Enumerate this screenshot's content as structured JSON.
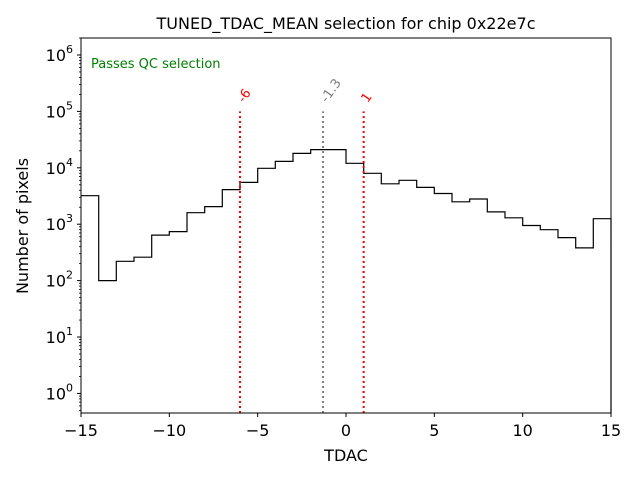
{
  "chart_data": {
    "type": "step-histogram",
    "title": "TUNED_TDAC_MEAN selection for chip 0x22e7c",
    "xlabel": "TDAC",
    "ylabel": "Number of pixels",
    "xlim": [
      -15,
      15
    ],
    "ylim": [
      0.45,
      2000000
    ],
    "yscale": "log",
    "x_ticks": [
      -15,
      -10,
      -5,
      0,
      5,
      10,
      15
    ],
    "x_tick_labels": [
      "−15",
      "−10",
      "−5",
      "0",
      "5",
      "10",
      "15"
    ],
    "y_ticks": [
      {
        "value": 1,
        "base": "10",
        "exp": "0"
      },
      {
        "value": 10,
        "base": "10",
        "exp": "1"
      },
      {
        "value": 100,
        "base": "10",
        "exp": "2"
      },
      {
        "value": 1000,
        "base": "10",
        "exp": "3"
      },
      {
        "value": 10000,
        "base": "10",
        "exp": "4"
      },
      {
        "value": 100000,
        "base": "10",
        "exp": "5"
      },
      {
        "value": 1000000,
        "base": "10",
        "exp": "6"
      }
    ],
    "bin_edges": [
      -15,
      -14,
      -13,
      -12,
      -11,
      -10,
      -9,
      -8,
      -7,
      -6,
      -5,
      -4,
      -3,
      -2,
      -1,
      0,
      1,
      2,
      3,
      4,
      5,
      6,
      7,
      8,
      9,
      10,
      11,
      12,
      13,
      14,
      15
    ],
    "counts": [
      3200,
      100,
      220,
      260,
      640,
      740,
      1600,
      2050,
      4100,
      5500,
      9800,
      13000,
      18000,
      21000,
      21000,
      12000,
      8000,
      5200,
      6000,
      4500,
      3500,
      2500,
      2800,
      1650,
      1300,
      950,
      800,
      580,
      380,
      1250
    ],
    "lines": [
      {
        "x": -6,
        "label": "-6",
        "color": "#ff0000",
        "top": 100000
      },
      {
        "x": -1.3,
        "label": "-1.3",
        "color": "#808080",
        "top": 100000
      },
      {
        "x": 1,
        "label": "1",
        "color": "#ff0000",
        "top": 100000
      }
    ],
    "annotation": "Passes QC selection",
    "annotation_color": "#008000",
    "line_color": "#000000"
  }
}
